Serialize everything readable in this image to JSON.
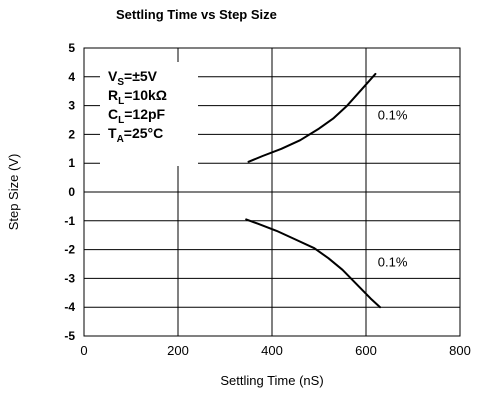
{
  "chart_data": {
    "type": "line",
    "title": "Settling Time vs Step Size",
    "xlabel": "Settling Time (nS)",
    "ylabel": "Step Size (V)",
    "xlim": [
      0,
      800
    ],
    "ylim": [
      -5,
      5
    ],
    "x_ticks": [
      "0",
      "200",
      "400",
      "600",
      "800"
    ],
    "y_ticks": [
      "5",
      "4",
      "3",
      "2",
      "1",
      "0",
      "-1",
      "-2",
      "-3",
      "-4",
      "-5"
    ],
    "grid": true,
    "conditions": [
      {
        "main": "V",
        "sub": "S",
        "rest": "=±5V"
      },
      {
        "main": "R",
        "sub": "L",
        "rest": "=10kΩ"
      },
      {
        "main": "C",
        "sub": "L",
        "rest": "=12pF"
      },
      {
        "main": "T",
        "sub": "A",
        "rest": "=25°C"
      }
    ],
    "annotations": [
      {
        "text": "0.1%",
        "x": 625,
        "y": 2.65
      },
      {
        "text": "0.1%",
        "x": 625,
        "y": -2.45
      }
    ],
    "series": [
      {
        "x": [
          350,
          380,
          420,
          460,
          500,
          530,
          560,
          590,
          620
        ],
        "values": [
          1.05,
          1.25,
          1.5,
          1.8,
          2.2,
          2.55,
          3.0,
          3.55,
          4.1
        ]
      },
      {
        "x": [
          345,
          370,
          410,
          450,
          490,
          520,
          550,
          580,
          610,
          630
        ],
        "values": [
          -0.95,
          -1.1,
          -1.35,
          -1.65,
          -1.95,
          -2.3,
          -2.7,
          -3.2,
          -3.7,
          -4.0
        ]
      }
    ]
  }
}
